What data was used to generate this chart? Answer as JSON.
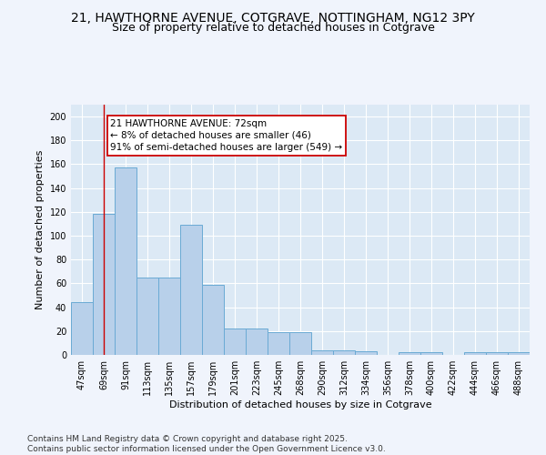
{
  "title_line1": "21, HAWTHORNE AVENUE, COTGRAVE, NOTTINGHAM, NG12 3PY",
  "title_line2": "Size of property relative to detached houses in Cotgrave",
  "xlabel": "Distribution of detached houses by size in Cotgrave",
  "ylabel": "Number of detached properties",
  "categories": [
    "47sqm",
    "69sqm",
    "91sqm",
    "113sqm",
    "135sqm",
    "157sqm",
    "179sqm",
    "201sqm",
    "223sqm",
    "245sqm",
    "268sqm",
    "290sqm",
    "312sqm",
    "334sqm",
    "356sqm",
    "378sqm",
    "400sqm",
    "422sqm",
    "444sqm",
    "466sqm",
    "488sqm"
  ],
  "values": [
    44,
    118,
    157,
    65,
    65,
    109,
    59,
    22,
    22,
    19,
    19,
    4,
    4,
    3,
    0,
    2,
    2,
    0,
    2,
    2,
    2
  ],
  "bar_color": "#b8d0ea",
  "bar_edge_color": "#6aaad4",
  "vline_x_index": 1,
  "vline_color": "#cc0000",
  "annotation_text": "21 HAWTHORNE AVENUE: 72sqm\n← 8% of detached houses are smaller (46)\n91% of semi-detached houses are larger (549) →",
  "annotation_box_facecolor": "#ffffff",
  "annotation_box_edgecolor": "#cc0000",
  "ylim": [
    0,
    210
  ],
  "yticks": [
    0,
    20,
    40,
    60,
    80,
    100,
    120,
    140,
    160,
    180,
    200
  ],
  "bg_color": "#dce9f5",
  "grid_color": "#ffffff",
  "fig_facecolor": "#f0f4fc",
  "footer_text": "Contains HM Land Registry data © Crown copyright and database right 2025.\nContains public sector information licensed under the Open Government Licence v3.0.",
  "title_fontsize": 10,
  "subtitle_fontsize": 9,
  "axis_label_fontsize": 8,
  "tick_fontsize": 7,
  "annotation_fontsize": 7.5,
  "footer_fontsize": 6.5
}
